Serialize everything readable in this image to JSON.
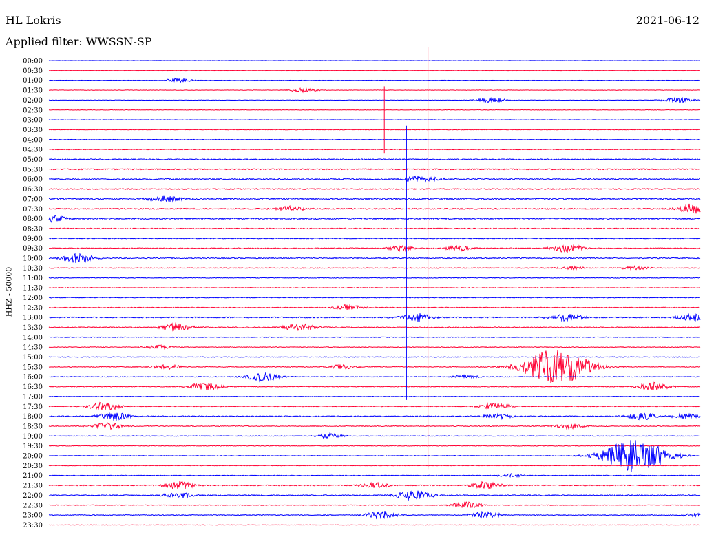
{
  "header": {
    "station": "HL Lokris",
    "date": "2021-06-12",
    "filter": "Applied filter: WWSSN-SP"
  },
  "chart_data": {
    "type": "line",
    "subtype": "seismogram-helicorder",
    "ylabel": "HHZ - 50000",
    "colors": [
      "#0000ff",
      "#ff0033"
    ],
    "times": [
      "00:00",
      "00:30",
      "01:00",
      "01:30",
      "02:00",
      "02:30",
      "03:00",
      "03:30",
      "04:00",
      "04:30",
      "05:00",
      "05:30",
      "06:00",
      "06:30",
      "07:00",
      "07:30",
      "08:00",
      "08:30",
      "09:00",
      "09:30",
      "10:00",
      "10:30",
      "11:00",
      "11:30",
      "12:00",
      "12:30",
      "13:00",
      "13:30",
      "14:00",
      "14:30",
      "15:00",
      "15:30",
      "16:00",
      "16:30",
      "17:00",
      "17:30",
      "18:00",
      "18:30",
      "19:00",
      "19:30",
      "20:00",
      "20:30",
      "21:00",
      "21:30",
      "22:00",
      "22:30",
      "23:00",
      "23:30"
    ],
    "noise": [
      0.5,
      0.5,
      0.6,
      0.6,
      0.5,
      0.6,
      0.7,
      0.8,
      0.8,
      1.0,
      1.4,
      1.6,
      1.6,
      1.5,
      1.8,
      1.6,
      1.8,
      1.4,
      1.2,
      1.4,
      1.4,
      1.1,
      0.9,
      1.0,
      1.1,
      1.1,
      1.6,
      1.3,
      1.0,
      1.0,
      1.0,
      1.0,
      1.0,
      1.0,
      0.8,
      1.0,
      1.4,
      1.1,
      1.0,
      0.9,
      0.9,
      0.8,
      1.0,
      1.4,
      1.4,
      1.0,
      1.1,
      0.7
    ],
    "events": [
      {
        "row": 2,
        "pos": 0.2,
        "amp": 3
      },
      {
        "row": 3,
        "pos": 0.39,
        "amp": 3
      },
      {
        "row": 4,
        "pos": 0.68,
        "amp": 4
      },
      {
        "row": 4,
        "pos": 0.965,
        "amp": 4
      },
      {
        "row": 12,
        "pos": 0.56,
        "amp": 4
      },
      {
        "row": 12,
        "pos": 0.59,
        "amp": 3
      },
      {
        "row": 14,
        "pos": 0.18,
        "amp": 5
      },
      {
        "row": 15,
        "pos": 0.37,
        "amp": 4
      },
      {
        "row": 15,
        "pos": 0.995,
        "amp": 8
      },
      {
        "row": 16,
        "pos": 0.005,
        "amp": 5
      },
      {
        "row": 19,
        "pos": 0.54,
        "amp": 4
      },
      {
        "row": 19,
        "pos": 0.63,
        "amp": 4
      },
      {
        "row": 19,
        "pos": 0.795,
        "amp": 6
      },
      {
        "row": 20,
        "pos": 0.045,
        "amp": 7
      },
      {
        "row": 21,
        "pos": 0.8,
        "amp": 3
      },
      {
        "row": 21,
        "pos": 0.9,
        "amp": 3
      },
      {
        "row": 25,
        "pos": 0.46,
        "amp": 4
      },
      {
        "row": 26,
        "pos": 0.565,
        "amp": 6
      },
      {
        "row": 26,
        "pos": 0.795,
        "amp": 6
      },
      {
        "row": 26,
        "pos": 0.99,
        "amp": 6
      },
      {
        "row": 27,
        "pos": 0.195,
        "amp": 6
      },
      {
        "row": 27,
        "pos": 0.385,
        "amp": 6
      },
      {
        "row": 29,
        "pos": 0.17,
        "amp": 3
      },
      {
        "row": 31,
        "pos": 0.18,
        "amp": 4
      },
      {
        "row": 31,
        "pos": 0.45,
        "amp": 4
      },
      {
        "row": 31,
        "pos": 0.78,
        "amp": 26
      },
      {
        "row": 32,
        "pos": 0.33,
        "amp": 7
      },
      {
        "row": 32,
        "pos": 0.64,
        "amp": 3
      },
      {
        "row": 33,
        "pos": 0.24,
        "amp": 6
      },
      {
        "row": 33,
        "pos": 0.93,
        "amp": 6
      },
      {
        "row": 35,
        "pos": 0.085,
        "amp": 6
      },
      {
        "row": 35,
        "pos": 0.685,
        "amp": 5
      },
      {
        "row": 36,
        "pos": 0.1,
        "amp": 6
      },
      {
        "row": 36,
        "pos": 0.69,
        "amp": 4
      },
      {
        "row": 36,
        "pos": 0.91,
        "amp": 6
      },
      {
        "row": 36,
        "pos": 0.98,
        "amp": 4
      },
      {
        "row": 37,
        "pos": 0.09,
        "amp": 5
      },
      {
        "row": 37,
        "pos": 0.8,
        "amp": 4
      },
      {
        "row": 38,
        "pos": 0.43,
        "amp": 4
      },
      {
        "row": 40,
        "pos": 0.9,
        "amp": 24
      },
      {
        "row": 42,
        "pos": 0.71,
        "amp": 3
      },
      {
        "row": 43,
        "pos": 0.2,
        "amp": 6
      },
      {
        "row": 43,
        "pos": 0.5,
        "amp": 4
      },
      {
        "row": 43,
        "pos": 0.67,
        "amp": 5
      },
      {
        "row": 44,
        "pos": 0.2,
        "amp": 5
      },
      {
        "row": 44,
        "pos": 0.56,
        "amp": 8
      },
      {
        "row": 45,
        "pos": 0.64,
        "amp": 5
      },
      {
        "row": 46,
        "pos": 0.51,
        "amp": 6
      },
      {
        "row": 46,
        "pos": 0.67,
        "amp": 5
      },
      {
        "row": 46,
        "pos": 1.0,
        "amp": 4
      }
    ],
    "spikes": [
      {
        "row": 4,
        "row_end": 9,
        "pos": 0.515
      },
      {
        "row": 8,
        "row_end": 34,
        "pos": 0.549
      },
      {
        "row": 0,
        "row_end": 41,
        "pos": 0.582
      }
    ]
  }
}
